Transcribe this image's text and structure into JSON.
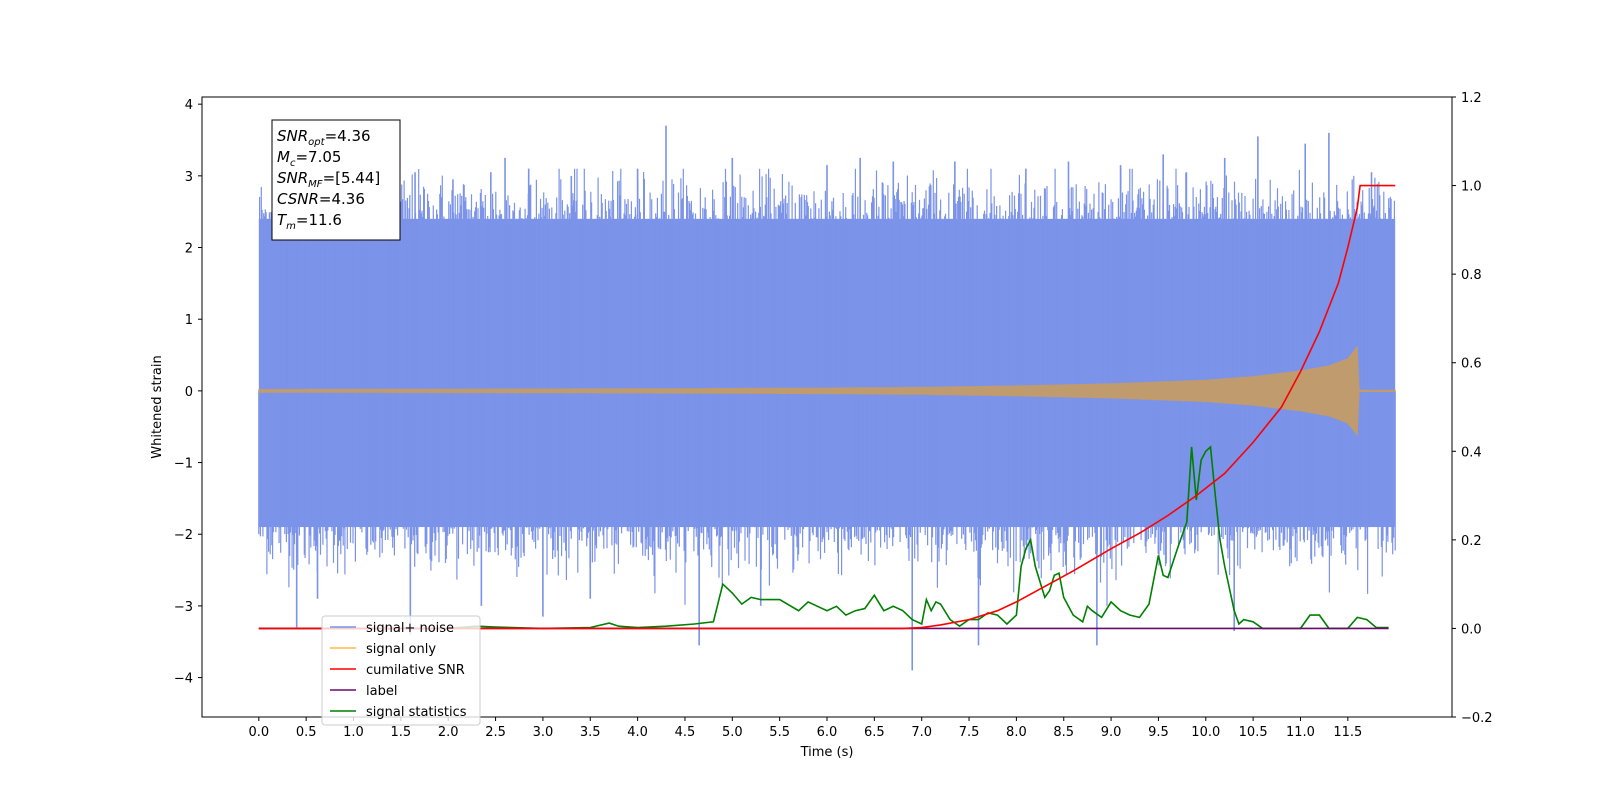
{
  "chart_data": {
    "type": "line",
    "xlabel": "Time (s)",
    "ylabel_left": "Whitened strain",
    "ylabel_right": "",
    "xlim": [
      -0.6,
      12.6
    ],
    "ylim_left": [
      -4.55,
      4.1
    ],
    "ylim_right": [
      -0.2,
      1.2
    ],
    "x_ticks": [
      0.0,
      0.5,
      1.0,
      1.5,
      2.0,
      2.5,
      3.0,
      3.5,
      4.0,
      4.5,
      5.0,
      5.5,
      6.0,
      6.5,
      7.0,
      7.5,
      8.0,
      8.5,
      9.0,
      9.5,
      10.0,
      10.5,
      11.0,
      11.5
    ],
    "x_tick_labels": [
      "0.0",
      "0.5",
      "1.0",
      "1.5",
      "2.0",
      "2.5",
      "3.0",
      "3.5",
      "4.0",
      "4.5",
      "5.0",
      "5.5",
      "6.0",
      "6.5",
      "7.0",
      "7.5",
      "8.0",
      "8.5",
      "9.0",
      "9.5",
      "10.0",
      "10.5",
      "11.0",
      "11.5"
    ],
    "y_left_ticks": [
      -4,
      -3,
      -2,
      -1,
      0,
      1,
      2,
      3,
      4
    ],
    "y_left_tick_labels": [
      "−4",
      "−3",
      "−2",
      "−1",
      "0",
      "1",
      "2",
      "3",
      "4"
    ],
    "y_right_ticks": [
      -0.2,
      0.0,
      0.2,
      0.4,
      0.6,
      0.8,
      1.0,
      1.2
    ],
    "y_right_tick_labels": [
      "−0.2",
      "0.0",
      "0.2",
      "0.4",
      "0.6",
      "0.8",
      "1.0",
      "1.2"
    ],
    "grid": false,
    "legend_placement": "lower-left",
    "annotation": {
      "lines": [
        {
          "base": "SNR",
          "sub": "opt",
          "value": "=4.36"
        },
        {
          "base": "M",
          "sub": "c",
          "value": "=7.05"
        },
        {
          "base": "SNR",
          "sub": "MF",
          "value": "=[5.44]"
        },
        {
          "base": "CSNR",
          "sub": "",
          "value": "=4.36"
        },
        {
          "base": "T",
          "sub": "m",
          "value": "=11.6"
        }
      ]
    },
    "series": [
      {
        "name": "signal+ noise",
        "axis": "left",
        "color": "#7b93e8",
        "style": "noise-envelope",
        "x_range": [
          0.0,
          12.0
        ],
        "typical_range": [
          -1.9,
          2.4
        ],
        "peaks": [
          {
            "x": 0.4,
            "y": -3.3
          },
          {
            "x": 0.62,
            "y": -2.9
          },
          {
            "x": 1.1,
            "y": 3.2
          },
          {
            "x": 1.6,
            "y": -3.4
          },
          {
            "x": 1.65,
            "y": 3.05
          },
          {
            "x": 2.05,
            "y": 2.95
          },
          {
            "x": 2.35,
            "y": -3.0
          },
          {
            "x": 2.45,
            "y": 3.05
          },
          {
            "x": 2.6,
            "y": 3.25
          },
          {
            "x": 2.85,
            "y": 3.1
          },
          {
            "x": 3.0,
            "y": -3.15
          },
          {
            "x": 3.3,
            "y": 3.0
          },
          {
            "x": 3.5,
            "y": -2.9
          },
          {
            "x": 4.0,
            "y": 3.1
          },
          {
            "x": 4.3,
            "y": 3.7
          },
          {
            "x": 4.65,
            "y": -3.55
          },
          {
            "x": 5.0,
            "y": 3.25
          },
          {
            "x": 5.3,
            "y": -3.0
          },
          {
            "x": 6.0,
            "y": 3.15
          },
          {
            "x": 6.35,
            "y": 3.25
          },
          {
            "x": 6.7,
            "y": 3.2
          },
          {
            "x": 6.9,
            "y": -3.9
          },
          {
            "x": 7.35,
            "y": 3.2
          },
          {
            "x": 7.6,
            "y": -3.55
          },
          {
            "x": 8.1,
            "y": 3.1
          },
          {
            "x": 8.55,
            "y": 3.2
          },
          {
            "x": 8.85,
            "y": -3.55
          },
          {
            "x": 9.1,
            "y": 3.15
          },
          {
            "x": 9.55,
            "y": 3.3
          },
          {
            "x": 10.2,
            "y": 3.25
          },
          {
            "x": 10.3,
            "y": -3.35
          },
          {
            "x": 10.55,
            "y": 3.55
          },
          {
            "x": 11.05,
            "y": 3.45
          },
          {
            "x": 11.3,
            "y": 3.6
          },
          {
            "x": 11.75,
            "y": 3.05
          }
        ]
      },
      {
        "name": "signal only",
        "axis": "left",
        "color": "#ffb74d",
        "fill_color": "#bf9b6e",
        "style": "chirp",
        "x_range": [
          0.0,
          12.0
        ],
        "amplitude": [
          [
            0.0,
            0.02
          ],
          [
            2.0,
            0.025
          ],
          [
            4.0,
            0.03
          ],
          [
            6.0,
            0.04
          ],
          [
            7.0,
            0.05
          ],
          [
            8.0,
            0.07
          ],
          [
            9.0,
            0.1
          ],
          [
            10.0,
            0.15
          ],
          [
            10.5,
            0.2
          ],
          [
            11.0,
            0.28
          ],
          [
            11.3,
            0.35
          ],
          [
            11.5,
            0.45
          ],
          [
            11.6,
            0.62
          ],
          [
            11.62,
            0.01
          ],
          [
            12.0,
            0.01
          ]
        ]
      },
      {
        "name": "cumilative SNR",
        "axis": "right",
        "color": "#ff0000",
        "x": [
          0.0,
          6.8,
          7.0,
          7.2,
          7.5,
          7.8,
          8.0,
          8.3,
          8.6,
          9.0,
          9.3,
          9.6,
          9.9,
          10.2,
          10.5,
          10.8,
          11.0,
          11.2,
          11.4,
          11.5,
          11.6,
          11.63,
          12.0
        ],
        "values": [
          0.0,
          0.0,
          0.002,
          0.008,
          0.02,
          0.04,
          0.06,
          0.095,
          0.13,
          0.18,
          0.215,
          0.255,
          0.3,
          0.35,
          0.42,
          0.5,
          0.58,
          0.67,
          0.78,
          0.86,
          0.95,
          1.0,
          1.0
        ]
      },
      {
        "name": "label",
        "axis": "right",
        "color": "#6a0a6a",
        "x": [
          0.0,
          11.93
        ],
        "values": [
          0.0,
          0.0
        ]
      },
      {
        "name": "signal statistics",
        "axis": "right",
        "color": "#008000",
        "x": [
          0.0,
          0.5,
          1.0,
          1.5,
          2.0,
          2.3,
          2.5,
          3.0,
          3.5,
          3.7,
          3.8,
          4.0,
          4.3,
          4.6,
          4.8,
          4.9,
          5.0,
          5.1,
          5.2,
          5.3,
          5.5,
          5.7,
          5.8,
          5.9,
          6.0,
          6.1,
          6.2,
          6.3,
          6.4,
          6.5,
          6.6,
          6.7,
          6.8,
          6.9,
          7.0,
          7.05,
          7.1,
          7.15,
          7.2,
          7.3,
          7.4,
          7.5,
          7.6,
          7.7,
          7.8,
          7.9,
          8.0,
          8.05,
          8.1,
          8.15,
          8.2,
          8.3,
          8.35,
          8.4,
          8.45,
          8.5,
          8.6,
          8.7,
          8.75,
          8.8,
          8.9,
          9.0,
          9.1,
          9.2,
          9.3,
          9.4,
          9.5,
          9.55,
          9.6,
          9.7,
          9.8,
          9.85,
          9.9,
          9.95,
          10.0,
          10.05,
          10.1,
          10.15,
          10.2,
          10.3,
          10.35,
          10.4,
          10.5,
          10.6,
          10.8,
          11.0,
          11.1,
          11.2,
          11.3,
          11.5,
          11.6,
          11.7,
          11.8,
          11.93
        ],
        "values": [
          0.0,
          0.0,
          0.0,
          0.0,
          0.0,
          0.005,
          0.003,
          0.0,
          0.002,
          0.012,
          0.005,
          0.002,
          0.005,
          0.01,
          0.015,
          0.1,
          0.08,
          0.055,
          0.07,
          0.065,
          0.065,
          0.04,
          0.06,
          0.05,
          0.04,
          0.05,
          0.03,
          0.04,
          0.045,
          0.075,
          0.04,
          0.05,
          0.04,
          0.02,
          0.01,
          0.065,
          0.04,
          0.06,
          0.055,
          0.02,
          0.005,
          0.02,
          0.02,
          0.035,
          0.03,
          0.01,
          0.03,
          0.14,
          0.18,
          0.2,
          0.14,
          0.07,
          0.085,
          0.12,
          0.125,
          0.07,
          0.03,
          0.015,
          0.05,
          0.04,
          0.025,
          0.06,
          0.04,
          0.03,
          0.025,
          0.055,
          0.165,
          0.12,
          0.115,
          0.18,
          0.24,
          0.41,
          0.29,
          0.38,
          0.4,
          0.41,
          0.3,
          0.2,
          0.14,
          0.04,
          0.01,
          0.02,
          0.015,
          0.0,
          0.0,
          0.0,
          0.03,
          0.03,
          0.0,
          0.0,
          0.025,
          0.02,
          0.002,
          0.002
        ]
      }
    ]
  }
}
